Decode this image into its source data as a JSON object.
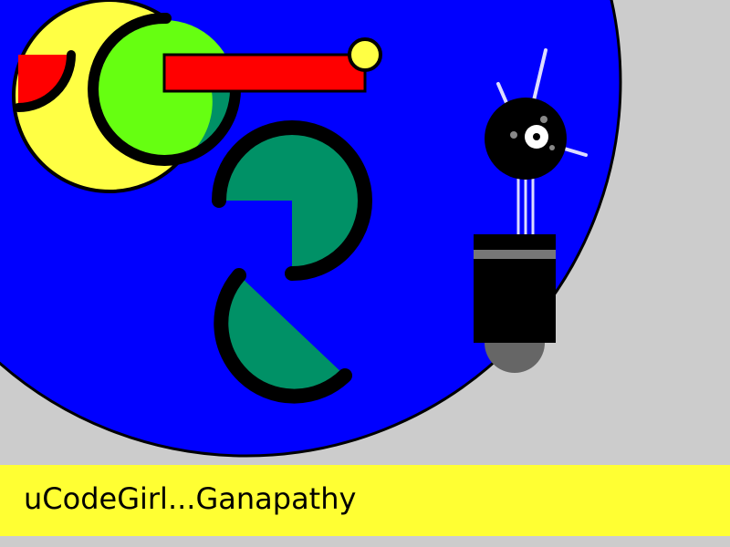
{
  "caption": "uCodeGirl...Ganapathy",
  "colors": {
    "background": "#cccccc",
    "big_circle": "#0000ff",
    "caption_bar": "#ffff33",
    "yellow_circle": "#ffff44",
    "green_circle": "#66ff11",
    "teal": "#009166",
    "red": "#ff0000",
    "robot_body": "#000000",
    "robot_base": "#666666",
    "robot_stripe": "#777777",
    "antenna": "#ddddff"
  }
}
